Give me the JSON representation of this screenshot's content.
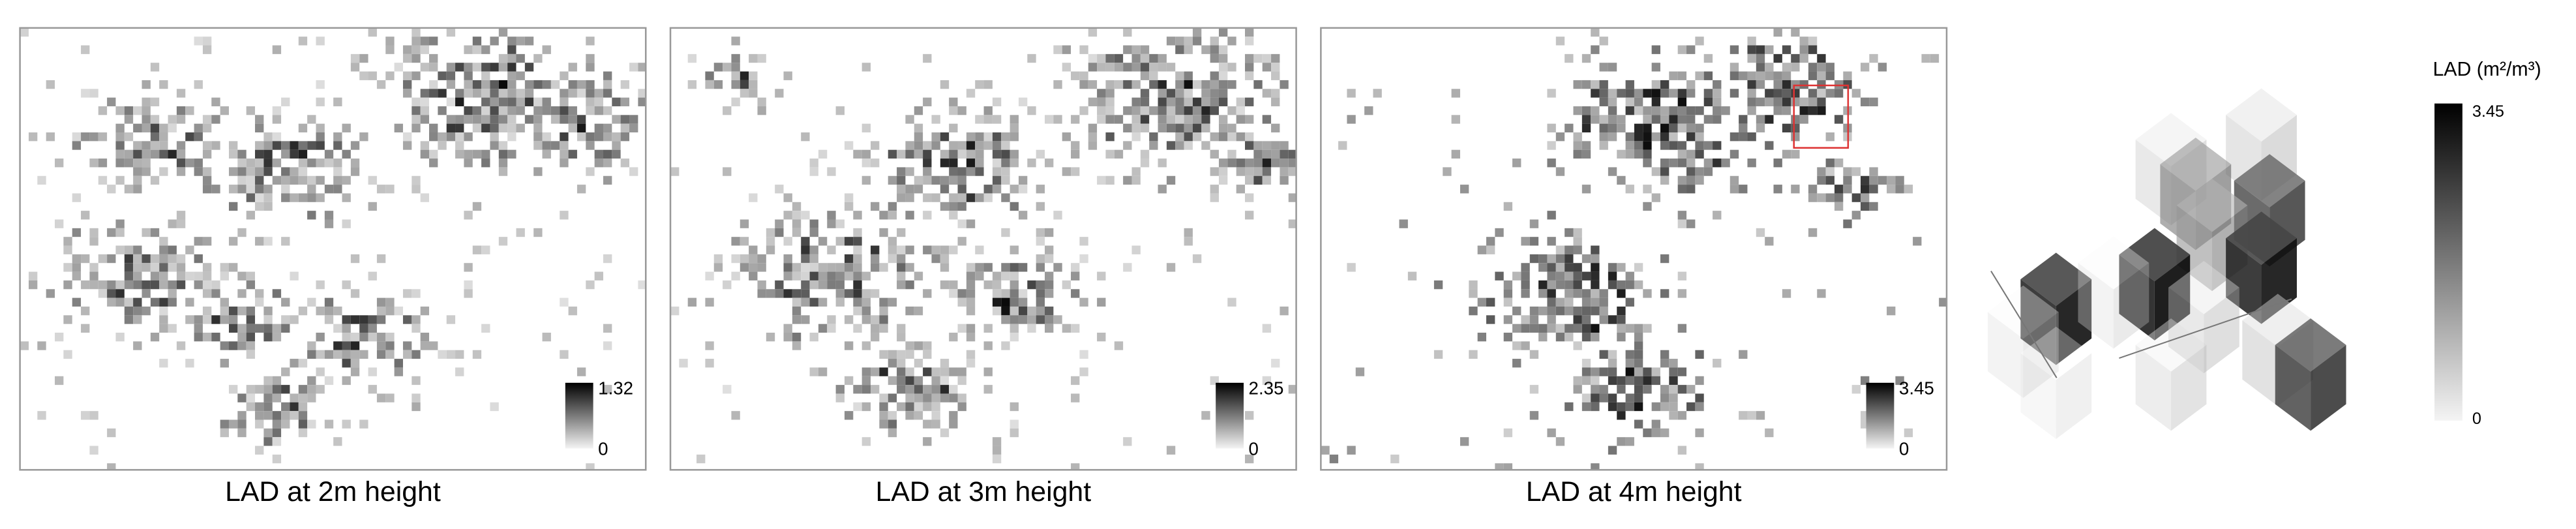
{
  "panels": [
    {
      "title": "LAD at 2m height",
      "colorbar": {
        "max": 1.32,
        "min": 0
      }
    },
    {
      "title": "LAD at 3m height",
      "colorbar": {
        "max": 2.35,
        "min": 0
      }
    },
    {
      "title": "LAD at 4m height",
      "colorbar": {
        "max": 3.45,
        "min": 0
      }
    }
  ],
  "legend": {
    "title": "LAD (m²/m³)",
    "max": 3.45,
    "min": 0
  }
}
